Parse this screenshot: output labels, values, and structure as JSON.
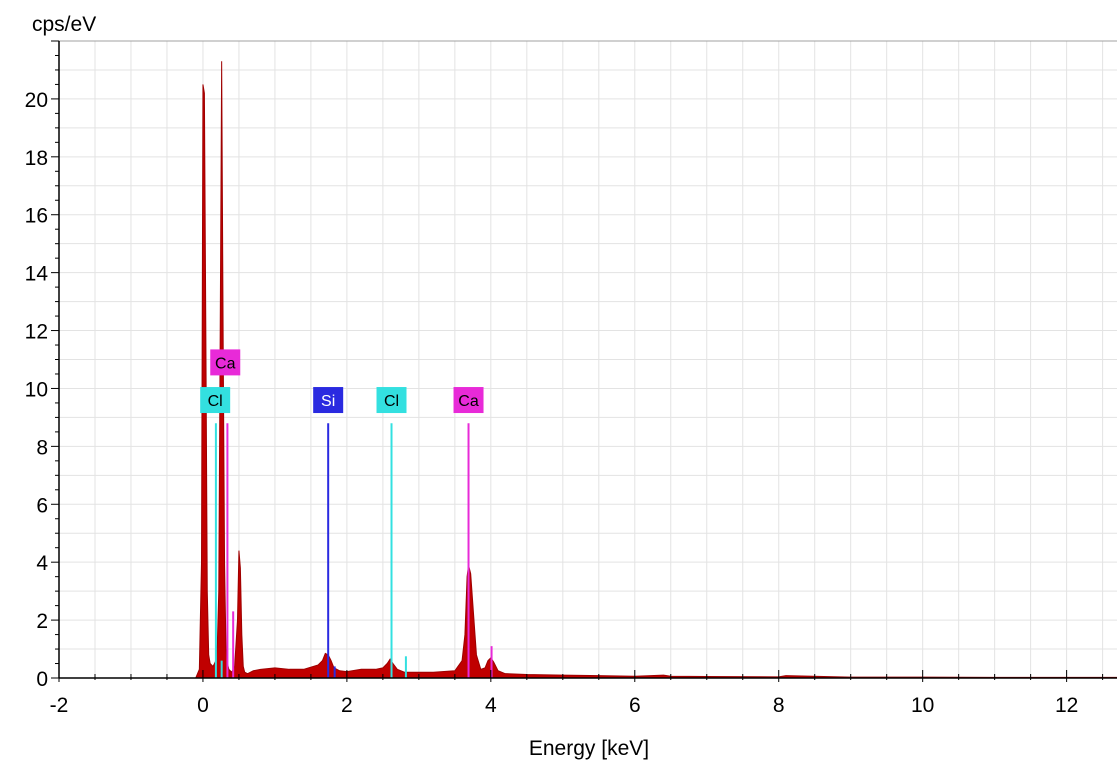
{
  "chart_data": {
    "type": "area",
    "ylabel": "cps/eV",
    "xlabel": "Energy [keV]",
    "xlim": [
      -2,
      12.7
    ],
    "ylim": [
      0,
      22
    ],
    "xticks": [
      -2,
      0,
      2,
      4,
      6,
      8,
      10,
      12
    ],
    "yticks": [
      0,
      2,
      4,
      6,
      8,
      10,
      12,
      14,
      16,
      18,
      20
    ],
    "grid": true,
    "spectrum": {
      "color": "#c00000",
      "x": [
        -0.1,
        -0.05,
        -0.02,
        0.0,
        0.02,
        0.04,
        0.06,
        0.08,
        0.1,
        0.14,
        0.18,
        0.2,
        0.22,
        0.24,
        0.26,
        0.28,
        0.3,
        0.32,
        0.34,
        0.36,
        0.4,
        0.44,
        0.48,
        0.5,
        0.52,
        0.54,
        0.56,
        0.58,
        0.62,
        0.7,
        0.8,
        1.0,
        1.2,
        1.4,
        1.6,
        1.66,
        1.7,
        1.74,
        1.78,
        1.82,
        1.9,
        2.0,
        2.2,
        2.4,
        2.5,
        2.56,
        2.6,
        2.64,
        2.7,
        2.8,
        3.0,
        3.2,
        3.5,
        3.6,
        3.64,
        3.67,
        3.69,
        3.72,
        3.76,
        3.8,
        3.86,
        3.92,
        3.96,
        4.0,
        4.04,
        4.1,
        4.2,
        4.5,
        5.0,
        5.5,
        6.0,
        6.4,
        6.5,
        7.0,
        8.0,
        8.1,
        9.0,
        10.0,
        11.0,
        12.0,
        12.7
      ],
      "y": [
        0,
        0.3,
        4,
        20.5,
        20.2,
        12,
        3,
        0.8,
        0.5,
        0.4,
        0.6,
        1.2,
        3,
        12,
        21.3,
        12,
        4,
        1,
        0.5,
        0.3,
        0.2,
        0.4,
        2,
        4.4,
        3.8,
        1.5,
        0.4,
        0.2,
        0.15,
        0.25,
        0.3,
        0.35,
        0.3,
        0.3,
        0.45,
        0.6,
        0.85,
        0.8,
        0.6,
        0.35,
        0.25,
        0.22,
        0.3,
        0.3,
        0.35,
        0.5,
        0.65,
        0.5,
        0.3,
        0.2,
        0.2,
        0.2,
        0.25,
        0.6,
        1.5,
        3.5,
        3.9,
        3.6,
        2.2,
        0.8,
        0.3,
        0.35,
        0.6,
        0.7,
        0.55,
        0.25,
        0.15,
        0.12,
        0.1,
        0.08,
        0.06,
        0.1,
        0.06,
        0.05,
        0.04,
        0.08,
        0.03,
        0.03,
        0.02,
        0.02,
        0.02
      ]
    },
    "element_lines": [
      {
        "element": "Cl",
        "energy": 0.18,
        "height": 8.8,
        "color": "#33e0e0"
      },
      {
        "element": "Ca",
        "energy": 0.34,
        "height": 8.8,
        "color": "#e82ad8"
      },
      {
        "element": "Ca",
        "energy": 0.42,
        "height": 2.3,
        "color": "#e82ad8"
      },
      {
        "element": "Cl",
        "energy": 0.26,
        "height": 0.6,
        "color": "#33e0e0"
      },
      {
        "element": "Si",
        "energy": 1.74,
        "height": 8.8,
        "color": "#2a2ae0"
      },
      {
        "element": "Si",
        "energy": 1.83,
        "height": 0.4,
        "color": "#2a2ae0"
      },
      {
        "element": "Cl",
        "energy": 2.62,
        "height": 8.8,
        "color": "#33e0e0"
      },
      {
        "element": "Cl",
        "energy": 2.82,
        "height": 0.75,
        "color": "#33e0e0"
      },
      {
        "element": "Ca",
        "energy": 3.69,
        "height": 8.8,
        "color": "#e82ad8"
      },
      {
        "element": "Ca",
        "energy": 4.01,
        "height": 1.1,
        "color": "#e82ad8"
      }
    ],
    "element_labels": [
      {
        "text": "Ca",
        "energy": 0.31,
        "y": 10.9,
        "color": "#e82ad8",
        "text_color": "#000000"
      },
      {
        "text": "Cl",
        "energy": 0.17,
        "y": 9.6,
        "color": "#33e0e0",
        "text_color": "#000000"
      },
      {
        "text": "Si",
        "energy": 1.74,
        "y": 9.6,
        "color": "#2a2ae0",
        "text_color": "#ffffff"
      },
      {
        "text": "Cl",
        "energy": 2.62,
        "y": 9.6,
        "color": "#33e0e0",
        "text_color": "#000000"
      },
      {
        "text": "Ca",
        "energy": 3.69,
        "y": 9.6,
        "color": "#e82ad8",
        "text_color": "#000000"
      }
    ]
  }
}
